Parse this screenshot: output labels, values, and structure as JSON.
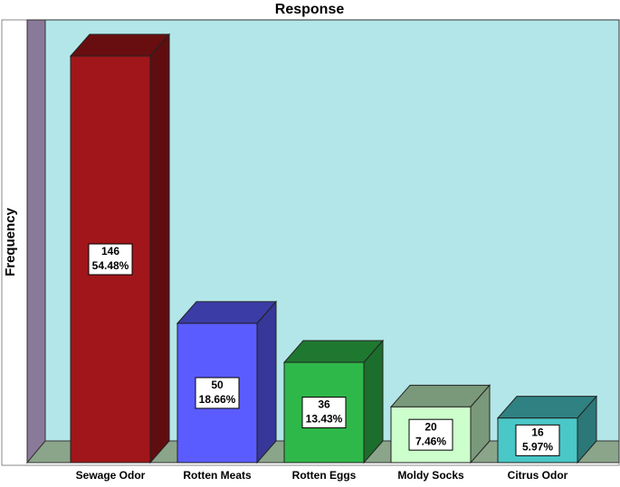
{
  "chart_data": {
    "type": "bar3d",
    "title": "Response",
    "ylabel": "Frequency",
    "categories": [
      "Sewage Odor",
      "Rotten Meats",
      "Rotten Eggs",
      "Moldy Socks",
      "Citrus Odor"
    ],
    "values": [
      146,
      50,
      36,
      20,
      16
    ],
    "percents": [
      54.48,
      18.66,
      13.43,
      7.46,
      5.97
    ],
    "percent_labels": [
      "54.48%",
      "18.66%",
      "13.43%",
      "7.46%",
      "5.97%"
    ],
    "colors": [
      "#a0161a",
      "#5b5cff",
      "#2fb84a",
      "#ccffcc",
      "#4ac7c7"
    ],
    "ylim": [
      0,
      150
    ]
  }
}
